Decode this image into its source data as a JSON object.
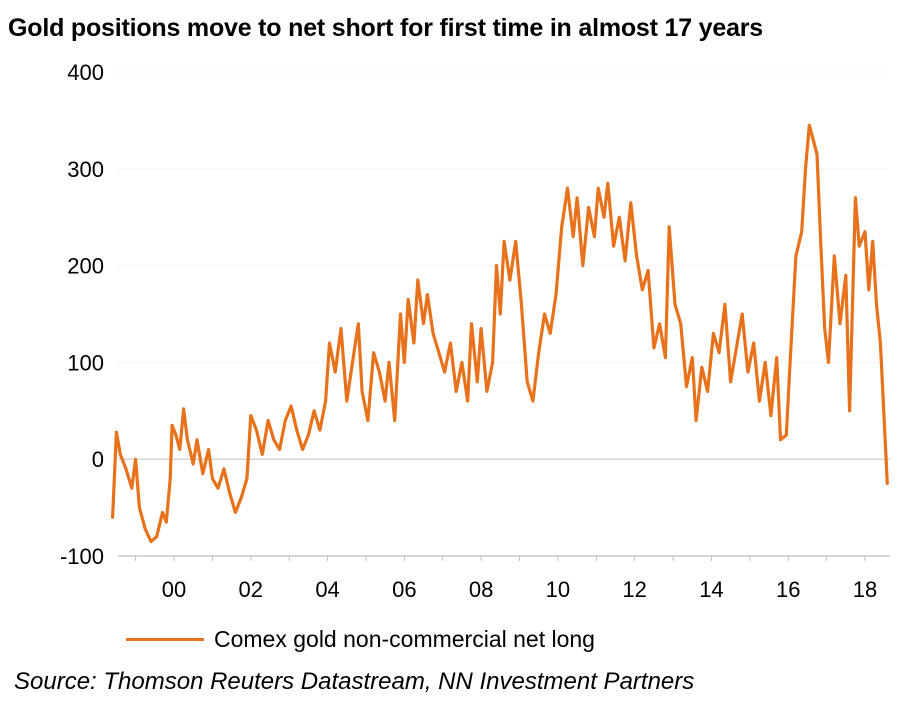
{
  "chart_data": {
    "type": "line",
    "title": "Gold positions move to net short for first time in almost 17 years",
    "xlabel": "",
    "ylabel": "",
    "ylim": [
      -100,
      400
    ],
    "yticks": [
      "400",
      "300",
      "200",
      "100",
      "0",
      "-100"
    ],
    "xlim": [
      1998.4,
      2018.6
    ],
    "xticks": [
      "00",
      "02",
      "04",
      "06",
      "08",
      "10",
      "12",
      "14",
      "16",
      "18"
    ],
    "grid": "horizontal dotted",
    "legend_position": "bottom-left",
    "series": [
      {
        "name": "Comex gold non-commercial net long",
        "color": "#e8721c",
        "points": [
          [
            1998.4,
            -60
          ],
          [
            1998.5,
            28
          ],
          [
            1998.6,
            5
          ],
          [
            1998.75,
            -10
          ],
          [
            1998.9,
            -30
          ],
          [
            1999.0,
            0
          ],
          [
            1999.1,
            -50
          ],
          [
            1999.25,
            -72
          ],
          [
            1999.4,
            -85
          ],
          [
            1999.55,
            -80
          ],
          [
            1999.7,
            -55
          ],
          [
            1999.8,
            -65
          ],
          [
            1999.9,
            -20
          ],
          [
            1999.95,
            35
          ],
          [
            2000.05,
            25
          ],
          [
            2000.15,
            10
          ],
          [
            2000.25,
            52
          ],
          [
            2000.35,
            20
          ],
          [
            2000.5,
            -5
          ],
          [
            2000.6,
            20
          ],
          [
            2000.75,
            -15
          ],
          [
            2000.9,
            10
          ],
          [
            2001.0,
            -20
          ],
          [
            2001.15,
            -30
          ],
          [
            2001.3,
            -10
          ],
          [
            2001.45,
            -35
          ],
          [
            2001.6,
            -55
          ],
          [
            2001.75,
            -40
          ],
          [
            2001.9,
            -20
          ],
          [
            2002.0,
            45
          ],
          [
            2002.15,
            30
          ],
          [
            2002.3,
            5
          ],
          [
            2002.45,
            40
          ],
          [
            2002.6,
            20
          ],
          [
            2002.75,
            10
          ],
          [
            2002.9,
            40
          ],
          [
            2003.05,
            55
          ],
          [
            2003.2,
            30
          ],
          [
            2003.35,
            10
          ],
          [
            2003.5,
            25
          ],
          [
            2003.65,
            50
          ],
          [
            2003.8,
            30
          ],
          [
            2003.95,
            60
          ],
          [
            2004.05,
            120
          ],
          [
            2004.2,
            90
          ],
          [
            2004.35,
            135
          ],
          [
            2004.5,
            60
          ],
          [
            2004.65,
            100
          ],
          [
            2004.8,
            140
          ],
          [
            2004.9,
            70
          ],
          [
            2005.05,
            40
          ],
          [
            2005.2,
            110
          ],
          [
            2005.35,
            90
          ],
          [
            2005.5,
            60
          ],
          [
            2005.6,
            100
          ],
          [
            2005.75,
            40
          ],
          [
            2005.9,
            150
          ],
          [
            2006.0,
            100
          ],
          [
            2006.1,
            165
          ],
          [
            2006.25,
            120
          ],
          [
            2006.35,
            185
          ],
          [
            2006.5,
            140
          ],
          [
            2006.6,
            170
          ],
          [
            2006.75,
            130
          ],
          [
            2006.9,
            110
          ],
          [
            2007.05,
            90
          ],
          [
            2007.2,
            120
          ],
          [
            2007.35,
            70
          ],
          [
            2007.5,
            100
          ],
          [
            2007.65,
            60
          ],
          [
            2007.75,
            140
          ],
          [
            2007.9,
            80
          ],
          [
            2008.0,
            135
          ],
          [
            2008.15,
            70
          ],
          [
            2008.3,
            100
          ],
          [
            2008.4,
            200
          ],
          [
            2008.5,
            150
          ],
          [
            2008.6,
            225
          ],
          [
            2008.75,
            185
          ],
          [
            2008.9,
            225
          ],
          [
            2009.05,
            160
          ],
          [
            2009.2,
            80
          ],
          [
            2009.35,
            60
          ],
          [
            2009.5,
            110
          ],
          [
            2009.65,
            150
          ],
          [
            2009.8,
            130
          ],
          [
            2009.95,
            170
          ],
          [
            2010.1,
            240
          ],
          [
            2010.25,
            280
          ],
          [
            2010.4,
            230
          ],
          [
            2010.5,
            270
          ],
          [
            2010.65,
            200
          ],
          [
            2010.8,
            260
          ],
          [
            2010.95,
            230
          ],
          [
            2011.05,
            280
          ],
          [
            2011.2,
            250
          ],
          [
            2011.3,
            285
          ],
          [
            2011.45,
            220
          ],
          [
            2011.6,
            250
          ],
          [
            2011.75,
            205
          ],
          [
            2011.9,
            265
          ],
          [
            2012.05,
            210
          ],
          [
            2012.2,
            175
          ],
          [
            2012.35,
            195
          ],
          [
            2012.5,
            115
          ],
          [
            2012.65,
            140
          ],
          [
            2012.8,
            105
          ],
          [
            2012.9,
            240
          ],
          [
            2013.05,
            160
          ],
          [
            2013.2,
            140
          ],
          [
            2013.35,
            75
          ],
          [
            2013.5,
            105
          ],
          [
            2013.6,
            40
          ],
          [
            2013.75,
            95
          ],
          [
            2013.9,
            70
          ],
          [
            2014.05,
            130
          ],
          [
            2014.2,
            110
          ],
          [
            2014.35,
            160
          ],
          [
            2014.5,
            80
          ],
          [
            2014.65,
            115
          ],
          [
            2014.8,
            150
          ],
          [
            2014.95,
            90
          ],
          [
            2015.1,
            120
          ],
          [
            2015.25,
            60
          ],
          [
            2015.4,
            100
          ],
          [
            2015.55,
            45
          ],
          [
            2015.7,
            105
          ],
          [
            2015.8,
            20
          ],
          [
            2015.95,
            25
          ],
          [
            2016.05,
            100
          ],
          [
            2016.2,
            210
          ],
          [
            2016.35,
            235
          ],
          [
            2016.45,
            300
          ],
          [
            2016.55,
            345
          ],
          [
            2016.65,
            330
          ],
          [
            2016.75,
            315
          ],
          [
            2016.85,
            220
          ],
          [
            2016.95,
            135
          ],
          [
            2017.05,
            100
          ],
          [
            2017.2,
            210
          ],
          [
            2017.35,
            140
          ],
          [
            2017.5,
            190
          ],
          [
            2017.6,
            50
          ],
          [
            2017.75,
            270
          ],
          [
            2017.85,
            220
          ],
          [
            2018.0,
            235
          ],
          [
            2018.1,
            175
          ],
          [
            2018.2,
            225
          ],
          [
            2018.3,
            160
          ],
          [
            2018.4,
            120
          ],
          [
            2018.5,
            40
          ],
          [
            2018.58,
            -25
          ]
        ]
      }
    ],
    "source": "Source: Thomson Reuters Datastream, NN Investment Partners"
  }
}
